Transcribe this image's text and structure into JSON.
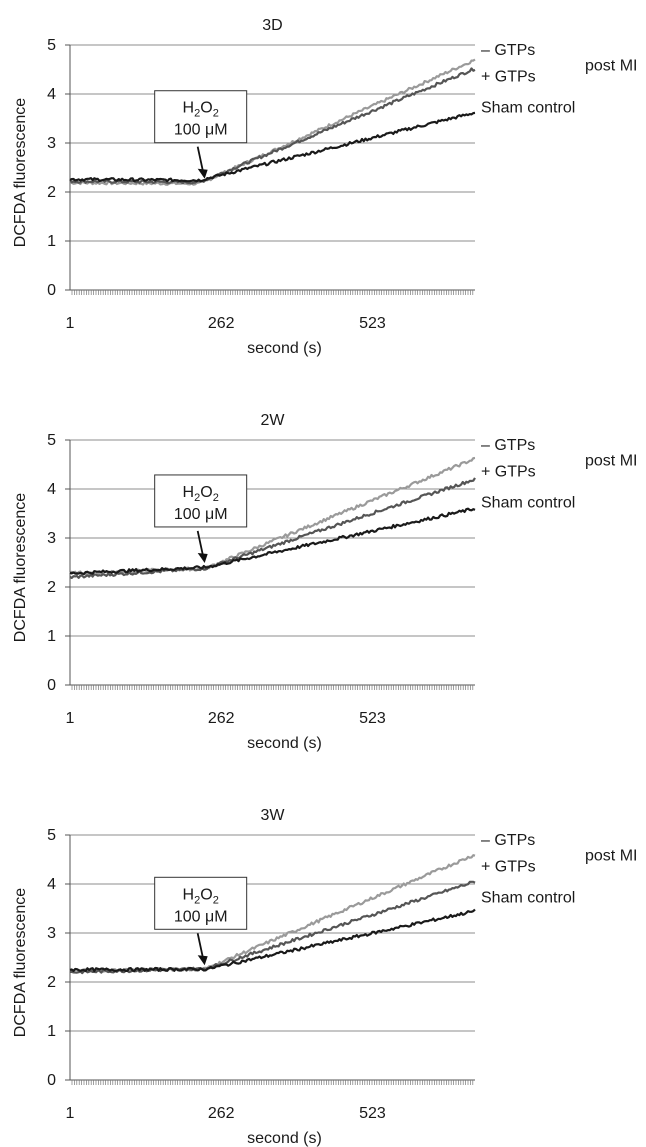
{
  "chart_data": [
    {
      "type": "line",
      "title": "3D",
      "xlabel": "second (s)",
      "ylabel": "DCFDA fluorescence",
      "xlim": [
        1,
        700
      ],
      "ylim": [
        0,
        5
      ],
      "yticks": [
        0,
        1,
        2,
        3,
        4,
        5
      ],
      "xticks": [
        1,
        262,
        523
      ],
      "grid": "horizontal",
      "group_label": "post MI",
      "annotation": {
        "line1_base": "H",
        "line1_sub1": "2",
        "line1_mid": "O",
        "line1_sub2": "2",
        "line2": "100 μM",
        "x": 230,
        "y": 2.23
      },
      "series": [
        {
          "name": "– GTPs",
          "color": "#9a9a9a",
          "start": 2.19,
          "knee_x": 225,
          "knee_y": 2.17,
          "end_x": 700,
          "end_y": 4.7
        },
        {
          "name": "+ GTPs",
          "color": "#555555",
          "start": 2.22,
          "knee_x": 225,
          "knee_y": 2.2,
          "end_x": 700,
          "end_y": 4.52
        },
        {
          "name": "Sham control",
          "color": "#1a1a1a",
          "start": 2.26,
          "knee_x": 225,
          "knee_y": 2.24,
          "end_x": 700,
          "end_y": 3.62
        }
      ]
    },
    {
      "type": "line",
      "title": "2W",
      "xlabel": "second (s)",
      "ylabel": "DCFDA fluorescence",
      "xlim": [
        1,
        700
      ],
      "ylim": [
        0,
        5
      ],
      "yticks": [
        0,
        1,
        2,
        3,
        4,
        5
      ],
      "xticks": [
        1,
        262,
        523
      ],
      "grid": "horizontal",
      "group_label": "post MI",
      "annotation": {
        "line1_base": "H",
        "line1_sub1": "2",
        "line1_mid": "O",
        "line1_sub2": "2",
        "line2": "100 μM",
        "x": 230,
        "y": 2.45
      },
      "series": [
        {
          "name": "– GTPs",
          "color": "#9a9a9a",
          "start": 2.28,
          "knee_x": 235,
          "knee_y": 2.38,
          "end_x": 700,
          "end_y": 4.62
        },
        {
          "name": "+ GTPs",
          "color": "#555555",
          "start": 2.2,
          "knee_x": 235,
          "knee_y": 2.38,
          "end_x": 700,
          "end_y": 4.2
        },
        {
          "name": "Sham control",
          "color": "#1a1a1a",
          "start": 2.28,
          "knee_x": 235,
          "knee_y": 2.4,
          "end_x": 700,
          "end_y": 3.6
        }
      ]
    },
    {
      "type": "line",
      "title": "3W",
      "xlabel": "second (s)",
      "ylabel": "DCFDA fluorescence",
      "xlim": [
        1,
        700
      ],
      "ylim": [
        0,
        5
      ],
      "yticks": [
        0,
        1,
        2,
        3,
        4,
        5
      ],
      "xticks": [
        1,
        262,
        523
      ],
      "grid": "horizontal",
      "group_label": "post MI",
      "annotation": {
        "line1_base": "H",
        "line1_sub1": "2",
        "line1_mid": "O",
        "line1_sub2": "2",
        "line2": "100 μM",
        "x": 230,
        "y": 2.3
      },
      "series": [
        {
          "name": "– GTPs",
          "color": "#9a9a9a",
          "start": 2.23,
          "knee_x": 235,
          "knee_y": 2.27,
          "end_x": 700,
          "end_y": 4.6
        },
        {
          "name": "+ GTPs",
          "color": "#555555",
          "start": 2.2,
          "knee_x": 235,
          "knee_y": 2.27,
          "end_x": 700,
          "end_y": 4.05
        },
        {
          "name": "Sham control",
          "color": "#1a1a1a",
          "start": 2.25,
          "knee_x": 235,
          "knee_y": 2.26,
          "end_x": 700,
          "end_y": 3.45
        }
      ]
    }
  ]
}
